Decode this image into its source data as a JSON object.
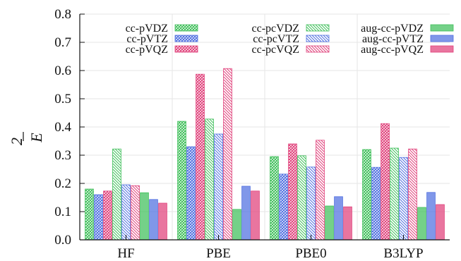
{
  "chart_data": {
    "type": "bar",
    "xlabel": "",
    "ylabel": "E",
    "ylim": [
      0,
      0.8
    ],
    "yticks": [
      "0.0",
      "0.1",
      "0.2",
      "0.3",
      "0.4",
      "0.5",
      "0.6",
      "0.7",
      "0.8"
    ],
    "categories": [
      "HF",
      "PBE",
      "PBE0",
      "B3LYP"
    ],
    "grid": true,
    "legend_position": "top",
    "colors": {
      "green": "#3fbf5a",
      "blue": "#4f6fe0",
      "pink": "#e0407a"
    },
    "series": [
      {
        "name": "cc-pVDZ",
        "color": "#3fbf5a",
        "pattern": "dense",
        "values": [
          0.18,
          0.42,
          0.295,
          0.32
        ]
      },
      {
        "name": "cc-pVTZ",
        "color": "#4f6fe0",
        "pattern": "dense",
        "values": [
          0.16,
          0.33,
          0.233,
          0.257
        ]
      },
      {
        "name": "cc-pVQZ",
        "color": "#e0407a",
        "pattern": "dense",
        "values": [
          0.173,
          0.587,
          0.34,
          0.412
        ]
      },
      {
        "name": "cc-pcVDZ",
        "color": "#3fbf5a",
        "pattern": "hatch",
        "values": [
          0.322,
          0.428,
          0.298,
          0.325
        ]
      },
      {
        "name": "cc-pcVTZ",
        "color": "#4f6fe0",
        "pattern": "hatch",
        "values": [
          0.195,
          0.375,
          0.258,
          0.292
        ]
      },
      {
        "name": "cc-pcVQZ",
        "color": "#e0407a",
        "pattern": "hatch",
        "values": [
          0.192,
          0.607,
          0.353,
          0.322
        ]
      },
      {
        "name": "aug-cc-pVDZ",
        "color": "#3fbf5a",
        "pattern": "solid",
        "values": [
          0.167,
          0.108,
          0.12,
          0.115
        ]
      },
      {
        "name": "aug-cc-pVTZ",
        "color": "#4f6fe0",
        "pattern": "solid",
        "values": [
          0.143,
          0.19,
          0.153,
          0.168
        ]
      },
      {
        "name": "aug-cc-pVQZ",
        "color": "#e0407a",
        "pattern": "solid",
        "values": [
          0.13,
          0.173,
          0.117,
          0.125
        ]
      }
    ]
  }
}
